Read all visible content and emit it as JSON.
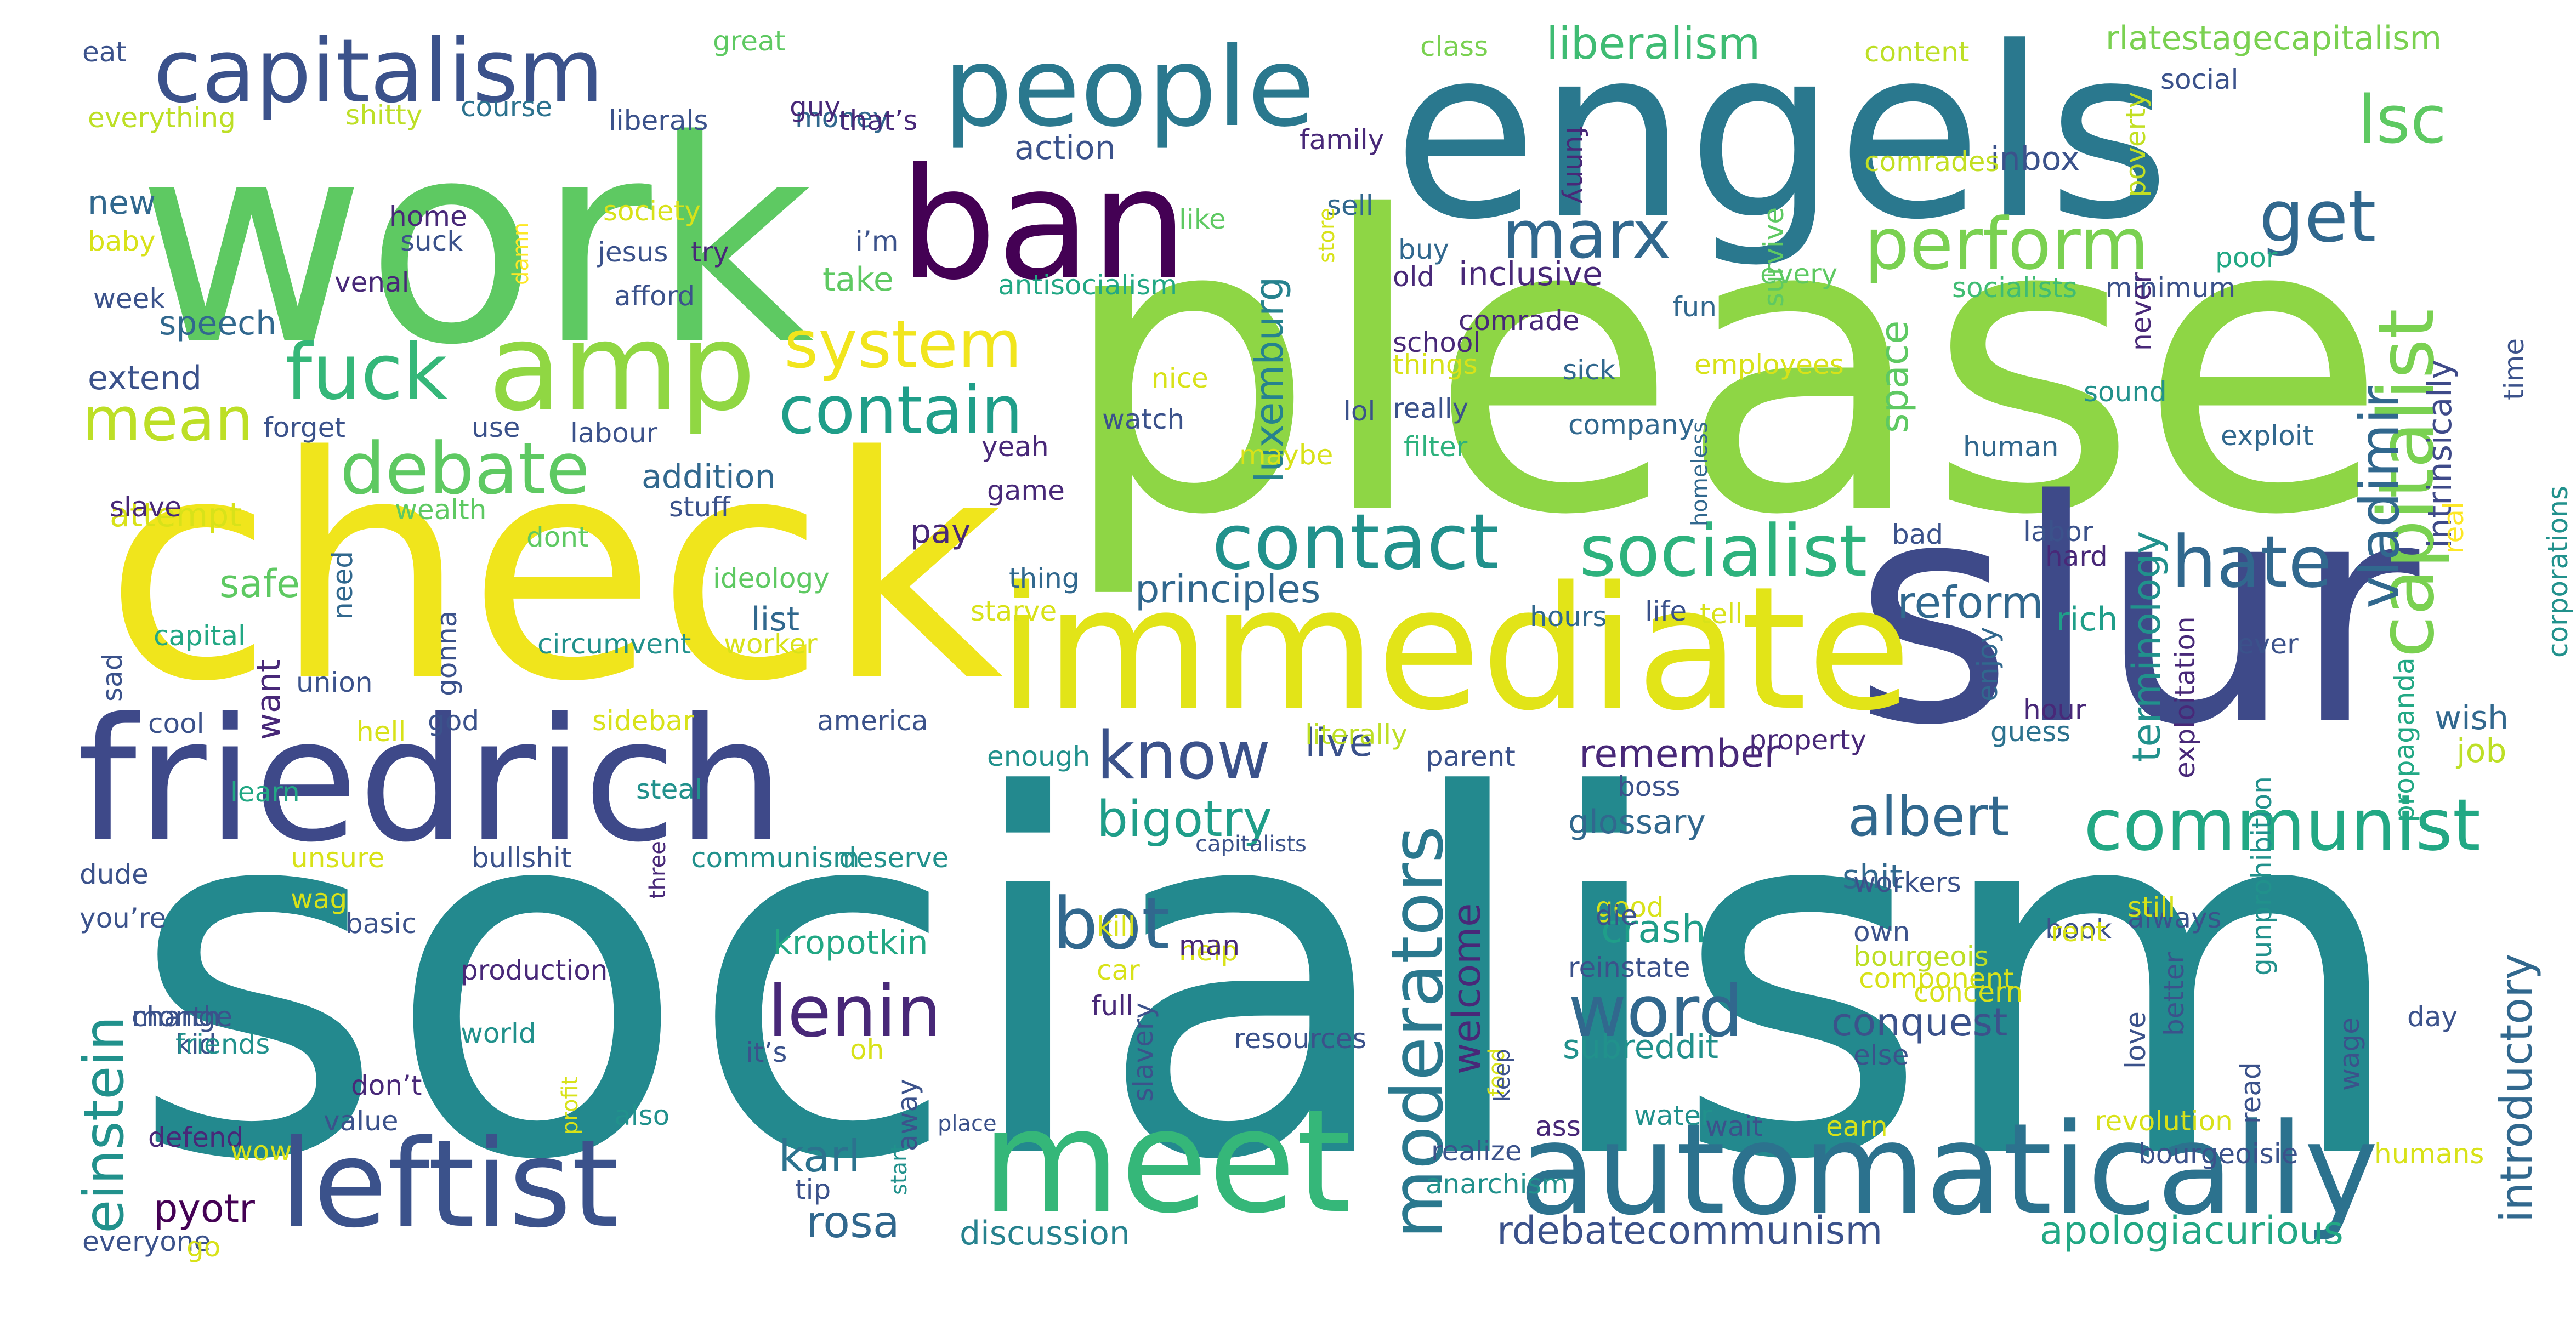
{
  "word_cloud": {
    "words": [
      {
        "text": "socialism",
        "color": "#23898e"
      },
      {
        "text": "please",
        "color": "#8ed645"
      },
      {
        "text": "work",
        "color": "#5ec962"
      },
      {
        "text": "check",
        "color": "#f0e51c"
      },
      {
        "text": "slur",
        "color": "#3e4a89"
      },
      {
        "text": "engels",
        "color": "#2a788e"
      },
      {
        "text": "immediate",
        "color": "#e2e418"
      },
      {
        "text": "friedrich",
        "color": "#3e4989"
      },
      {
        "text": "meet",
        "color": "#35b779"
      },
      {
        "text": "automatically",
        "color": "#2c728e"
      },
      {
        "text": "ban",
        "color": "#440154"
      },
      {
        "text": "people",
        "color": "#2a788e"
      },
      {
        "text": "amp",
        "color": "#90d743"
      },
      {
        "text": "leftist",
        "color": "#3b528b"
      },
      {
        "text": "capitalism",
        "color": "#3b528b"
      },
      {
        "text": "capitalist",
        "color": "#7ad151"
      },
      {
        "text": "perform",
        "color": "#7ad151"
      },
      {
        "text": "socialist",
        "color": "#2db27d"
      },
      {
        "text": "contact",
        "color": "#21918c"
      },
      {
        "text": "communist",
        "color": "#22a884"
      },
      {
        "text": "moderators",
        "color": "#2a788e"
      },
      {
        "text": "debate",
        "color": "#5ec962"
      },
      {
        "text": "lenin",
        "color": "#482878"
      },
      {
        "text": "bot",
        "color": "#31688e"
      },
      {
        "text": "word",
        "color": "#31688e"
      },
      {
        "text": "fuck",
        "color": "#35b779"
      },
      {
        "text": "system",
        "color": "#f1e51d"
      },
      {
        "text": "contain",
        "color": "#1f9e89"
      },
      {
        "text": "hate",
        "color": "#31688e"
      },
      {
        "text": "marx",
        "color": "#31688e"
      },
      {
        "text": "lsc",
        "color": "#5ec962"
      },
      {
        "text": "get",
        "color": "#31688e"
      },
      {
        "text": "know",
        "color": "#3b528b"
      },
      {
        "text": "bigotry",
        "color": "#1f9e89"
      },
      {
        "text": "albert",
        "color": "#31688e"
      },
      {
        "text": "einstein",
        "color": "#21918c"
      },
      {
        "text": "mean",
        "color": "#bddf26"
      },
      {
        "text": "vladimir",
        "color": "#31688e"
      },
      {
        "text": "rlatestagecapitalism",
        "color": "#7ad151"
      },
      {
        "text": "liberalism",
        "color": "#3fbc73"
      },
      {
        "text": "introductory",
        "color": "#31688e"
      },
      {
        "text": "karl",
        "color": "#2c728e"
      },
      {
        "text": "rosa",
        "color": "#31688e"
      },
      {
        "text": "pyotr",
        "color": "#440154"
      },
      {
        "text": "kropotkin",
        "color": "#22a884"
      },
      {
        "text": "luxemburg",
        "color": "#26828e"
      },
      {
        "text": "rdebatecommunism",
        "color": "#3b528b"
      },
      {
        "text": "apologiacurious",
        "color": "#22a884"
      },
      {
        "text": "remember",
        "color": "#482878"
      },
      {
        "text": "principles",
        "color": "#31688e"
      },
      {
        "text": "reform",
        "color": "#31688e"
      },
      {
        "text": "terminology",
        "color": "#21918c"
      },
      {
        "text": "space",
        "color": "#5ec962"
      },
      {
        "text": "intrinsically",
        "color": "#3e4a89"
      },
      {
        "text": "welcome",
        "color": "#482878"
      },
      {
        "text": "conquest",
        "color": "#3b528b"
      },
      {
        "text": "subreddit",
        "color": "#21918c"
      },
      {
        "text": "crash",
        "color": "#1f9e89"
      },
      {
        "text": "shit",
        "color": "#31688e"
      },
      {
        "text": "glossary",
        "color": "#31688e"
      },
      {
        "text": "inclusive",
        "color": "#482878"
      },
      {
        "text": "live",
        "color": "#3b528b"
      },
      {
        "text": "safe",
        "color": "#5ec962"
      },
      {
        "text": "speech",
        "color": "#31688e"
      },
      {
        "text": "extend",
        "color": "#3b528b"
      },
      {
        "text": "attempt",
        "color": "#d8e219"
      },
      {
        "text": "addition",
        "color": "#31688e"
      },
      {
        "text": "action",
        "color": "#3b528b"
      },
      {
        "text": "list",
        "color": "#31688e"
      },
      {
        "text": "want",
        "color": "#482878"
      },
      {
        "text": "pay",
        "color": "#482878"
      },
      {
        "text": "discussion",
        "color": "#26828e"
      },
      {
        "text": "take",
        "color": "#5ec962"
      },
      {
        "text": "money",
        "color": "#31688e"
      },
      {
        "text": "class",
        "color": "#7ad151"
      },
      {
        "text": "content",
        "color": "#bddf26"
      },
      {
        "text": "social",
        "color": "#3b528b"
      },
      {
        "text": "inbox",
        "color": "#3b528b"
      },
      {
        "text": "poverty",
        "color": "#c2df23"
      },
      {
        "text": "comrades",
        "color": "#c2df23"
      },
      {
        "text": "survive",
        "color": "#5ec962"
      },
      {
        "text": "funny",
        "color": "#482878"
      },
      {
        "text": "sell",
        "color": "#31688e"
      },
      {
        "text": "family",
        "color": "#482878"
      },
      {
        "text": "buy",
        "color": "#31688e"
      },
      {
        "text": "old",
        "color": "#482878"
      },
      {
        "text": "comrade",
        "color": "#482878"
      },
      {
        "text": "school",
        "color": "#482878"
      },
      {
        "text": "things",
        "color": "#d8e219"
      },
      {
        "text": "really",
        "color": "#3b528b"
      },
      {
        "text": "filter",
        "color": "#2db27d"
      },
      {
        "text": "sick",
        "color": "#31688e"
      },
      {
        "text": "employees",
        "color": "#d8e219"
      },
      {
        "text": "company",
        "color": "#31688e"
      },
      {
        "text": "fun",
        "color": "#31688e"
      },
      {
        "text": "every",
        "color": "#5ec962"
      },
      {
        "text": "socialists",
        "color": "#3fbc73"
      },
      {
        "text": "minimum",
        "color": "#3b528b"
      },
      {
        "text": "poor",
        "color": "#22a884"
      },
      {
        "text": "never",
        "color": "#482878"
      },
      {
        "text": "time",
        "color": "#3b528b"
      },
      {
        "text": "sound",
        "color": "#21918c"
      },
      {
        "text": "exploit",
        "color": "#31688e"
      },
      {
        "text": "human",
        "color": "#31688e"
      },
      {
        "text": "bad",
        "color": "#3b528b"
      },
      {
        "text": "labor",
        "color": "#3b528b"
      },
      {
        "text": "hard",
        "color": "#482878"
      },
      {
        "text": "real",
        "color": "#fde725"
      },
      {
        "text": "corporations",
        "color": "#21918c"
      },
      {
        "text": "rich",
        "color": "#1f9e89"
      },
      {
        "text": "ever",
        "color": "#3b528b"
      },
      {
        "text": "wish",
        "color": "#31688e"
      },
      {
        "text": "job",
        "color": "#bddf26"
      },
      {
        "text": "exploitation",
        "color": "#482878"
      },
      {
        "text": "propaganda",
        "color": "#22a884"
      },
      {
        "text": "hour",
        "color": "#482878"
      },
      {
        "text": "guess",
        "color": "#2c728e"
      },
      {
        "text": "enjoy",
        "color": "#31688e"
      },
      {
        "text": "eat",
        "color": "#3b528b"
      },
      {
        "text": "great",
        "color": "#5ec962"
      },
      {
        "text": "everything",
        "color": "#bddf26"
      },
      {
        "text": "shitty",
        "color": "#bddf26"
      },
      {
        "text": "course",
        "color": "#2c728e"
      },
      {
        "text": "liberals",
        "color": "#3b528b"
      },
      {
        "text": "guy",
        "color": "#482878"
      },
      {
        "text": "that’s",
        "color": "#482878"
      },
      {
        "text": "new",
        "color": "#31688e"
      },
      {
        "text": "baby",
        "color": "#d8e219"
      },
      {
        "text": "week",
        "color": "#3b528b"
      },
      {
        "text": "home",
        "color": "#482878"
      },
      {
        "text": "suck",
        "color": "#3b528b"
      },
      {
        "text": "venal",
        "color": "#482878"
      },
      {
        "text": "society",
        "color": "#d8e219"
      },
      {
        "text": "jesus",
        "color": "#3b528b"
      },
      {
        "text": "try",
        "color": "#482878"
      },
      {
        "text": "afford",
        "color": "#3b528b"
      },
      {
        "text": "damn",
        "color": "#fde725"
      },
      {
        "text": "i’m",
        "color": "#3b528b"
      },
      {
        "text": "like",
        "color": "#5ec962"
      },
      {
        "text": "antisocialism",
        "color": "#22a884"
      },
      {
        "text": "nice",
        "color": "#d8e219"
      },
      {
        "text": "watch",
        "color": "#3b528b"
      },
      {
        "text": "lol",
        "color": "#3b528b"
      },
      {
        "text": "maybe",
        "color": "#d8e219"
      },
      {
        "text": "store",
        "color": "#d8e219"
      },
      {
        "text": "forget",
        "color": "#3b528b"
      },
      {
        "text": "use",
        "color": "#3b528b"
      },
      {
        "text": "labour",
        "color": "#3b528b"
      },
      {
        "text": "yeah",
        "color": "#482878"
      },
      {
        "text": "game",
        "color": "#482878"
      },
      {
        "text": "slave",
        "color": "#482878"
      },
      {
        "text": "wealth",
        "color": "#5ec962"
      },
      {
        "text": "stuff",
        "color": "#3b528b"
      },
      {
        "text": "dont",
        "color": "#5ec962"
      },
      {
        "text": "ideology",
        "color": "#5ec962"
      },
      {
        "text": "thing",
        "color": "#31688e"
      },
      {
        "text": "hours",
        "color": "#31688e"
      },
      {
        "text": "life",
        "color": "#3b528b"
      },
      {
        "text": "tell",
        "color": "#d8e219"
      },
      {
        "text": "homeless",
        "color": "#31688e"
      },
      {
        "text": "capital",
        "color": "#22a884"
      },
      {
        "text": "need",
        "color": "#31688e"
      },
      {
        "text": "gonna",
        "color": "#3b528b"
      },
      {
        "text": "circumvent",
        "color": "#21918c"
      },
      {
        "text": "worker",
        "color": "#d8e219"
      },
      {
        "text": "starve",
        "color": "#d8e219"
      },
      {
        "text": "sad",
        "color": "#3b528b"
      },
      {
        "text": "union",
        "color": "#3b528b"
      },
      {
        "text": "cool",
        "color": "#3b528b"
      },
      {
        "text": "hell",
        "color": "#d8e219"
      },
      {
        "text": "god",
        "color": "#3b528b"
      },
      {
        "text": "sidebar",
        "color": "#d8e219"
      },
      {
        "text": "america",
        "color": "#3b528b"
      },
      {
        "text": "learn",
        "color": "#22a884"
      },
      {
        "text": "steal",
        "color": "#21918c"
      },
      {
        "text": "enough",
        "color": "#21918c"
      },
      {
        "text": "parent",
        "color": "#3b528b"
      },
      {
        "text": "literally",
        "color": "#bddf26"
      },
      {
        "text": "boss",
        "color": "#3b528b"
      },
      {
        "text": "property",
        "color": "#482878"
      },
      {
        "text": "dude",
        "color": "#3b528b"
      },
      {
        "text": "you’re",
        "color": "#3b528b"
      },
      {
        "text": "unsure",
        "color": "#d8e219"
      },
      {
        "text": "bullshit",
        "color": "#3b528b"
      },
      {
        "text": "communism",
        "color": "#21918c"
      },
      {
        "text": "deserve",
        "color": "#21918c"
      },
      {
        "text": "capitalists",
        "color": "#3b528b"
      },
      {
        "text": "wag",
        "color": "#d8e219"
      },
      {
        "text": "basic",
        "color": "#3b528b"
      },
      {
        "text": "three",
        "color": "#482878"
      },
      {
        "text": "kill",
        "color": "#d8e219"
      },
      {
        "text": "help",
        "color": "#d8e219"
      },
      {
        "text": "good",
        "color": "#d8e219"
      },
      {
        "text": "reinstate",
        "color": "#3b528b"
      },
      {
        "text": "own",
        "color": "#3b528b"
      },
      {
        "text": "concern",
        "color": "#d8e219"
      },
      {
        "text": "book",
        "color": "#3b528b"
      },
      {
        "text": "always",
        "color": "#3b528b"
      },
      {
        "text": "gunprohibition",
        "color": "#21918c"
      },
      {
        "text": "food",
        "color": "#d8e219"
      },
      {
        "text": "change",
        "color": "#3b528b"
      },
      {
        "text": "kid",
        "color": "#3b528b"
      },
      {
        "text": "production",
        "color": "#482878"
      },
      {
        "text": "profit",
        "color": "#d8e219"
      },
      {
        "text": "car",
        "color": "#d8e219"
      },
      {
        "text": "man",
        "color": "#482878"
      },
      {
        "text": "die",
        "color": "#3b528b"
      },
      {
        "text": "workers",
        "color": "#3b528b"
      },
      {
        "text": "bourgeois",
        "color": "#bddf26"
      },
      {
        "text": "rent",
        "color": "#d8e219"
      },
      {
        "text": "still",
        "color": "#d8e219"
      },
      {
        "text": "better",
        "color": "#3b528b"
      },
      {
        "text": "keep",
        "color": "#3b528b"
      },
      {
        "text": "month",
        "color": "#3b528b"
      },
      {
        "text": "friends",
        "color": "#21918c"
      },
      {
        "text": "world",
        "color": "#21918c"
      },
      {
        "text": "full",
        "color": "#482878"
      },
      {
        "text": "it’s",
        "color": "#3b528b"
      },
      {
        "text": "oh",
        "color": "#d8e219"
      },
      {
        "text": "slavery",
        "color": "#3b528b"
      },
      {
        "text": "resources",
        "color": "#3b528b"
      },
      {
        "text": "component",
        "color": "#d8e219"
      },
      {
        "text": "else",
        "color": "#3b528b"
      },
      {
        "text": "love",
        "color": "#3b528b"
      },
      {
        "text": "read",
        "color": "#3b528b"
      },
      {
        "text": "wage",
        "color": "#3b528b"
      },
      {
        "text": "day",
        "color": "#3b528b"
      },
      {
        "text": "don’t",
        "color": "#482878"
      },
      {
        "text": "also",
        "color": "#21918c"
      },
      {
        "text": "defend",
        "color": "#482878"
      },
      {
        "text": "wow",
        "color": "#d8e219"
      },
      {
        "text": "value",
        "color": "#3b528b"
      },
      {
        "text": "away",
        "color": "#3b528b"
      },
      {
        "text": "place",
        "color": "#3b528b"
      },
      {
        "text": "start",
        "color": "#21918c"
      },
      {
        "text": "tip",
        "color": "#3b528b"
      },
      {
        "text": "realize",
        "color": "#3b528b"
      },
      {
        "text": "anarchism",
        "color": "#21918c"
      },
      {
        "text": "ass",
        "color": "#482878"
      },
      {
        "text": "water",
        "color": "#21918c"
      },
      {
        "text": "wait",
        "color": "#3b528b"
      },
      {
        "text": "earn",
        "color": "#d8e219"
      },
      {
        "text": "revolution",
        "color": "#d8e219"
      },
      {
        "text": "bourgeoisie",
        "color": "#3b528b"
      },
      {
        "text": "humans",
        "color": "#d8e219"
      },
      {
        "text": "everyone",
        "color": "#3b528b"
      },
      {
        "text": "go",
        "color": "#d8e219"
      }
    ]
  }
}
